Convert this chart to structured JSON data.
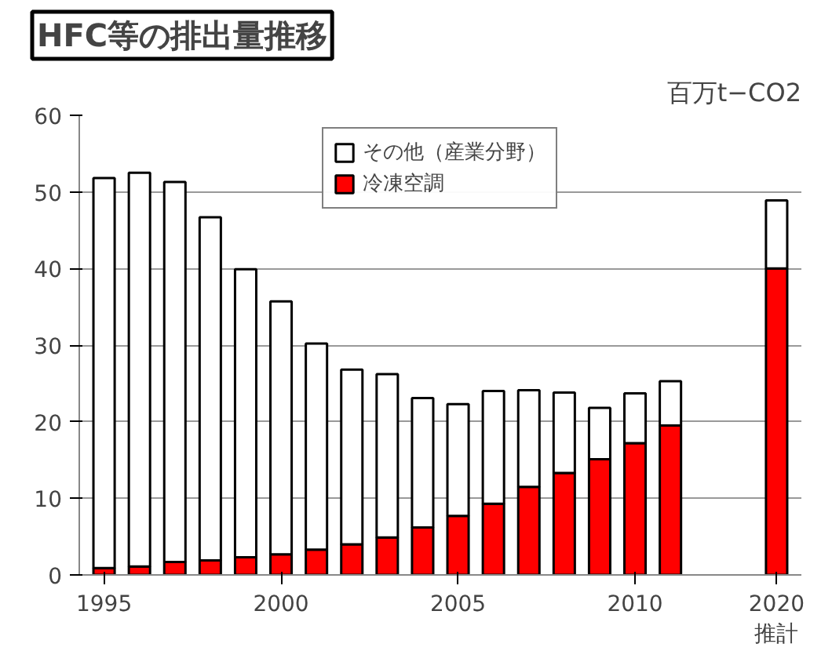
{
  "chart_data": {
    "type": "bar",
    "title": "HFC等の排出量推移",
    "ylabel": "百万t−CO2",
    "stacked": true,
    "categories": [
      "1995",
      null,
      null,
      null,
      null,
      "2000",
      null,
      null,
      null,
      null,
      "2005",
      null,
      null,
      null,
      null,
      "2010",
      null,
      null,
      null,
      "2020\n推計"
    ],
    "series": [
      {
        "name": "冷凍空調",
        "color": "#ff0000",
        "values": [
          0.9,
          1.1,
          1.7,
          1.9,
          2.3,
          2.7,
          3.3,
          4.0,
          4.9,
          6.2,
          7.7,
          9.3,
          11.5,
          13.3,
          15.1,
          17.2,
          19.5,
          null,
          null,
          40.0
        ]
      },
      {
        "name": "その他（産業分野）",
        "color": "#ffffff",
        "values": [
          50.9,
          51.4,
          49.6,
          44.8,
          37.6,
          33.0,
          26.9,
          22.8,
          21.3,
          16.9,
          14.6,
          14.7,
          12.6,
          10.5,
          6.7,
          6.5,
          5.8,
          null,
          null,
          8.9
        ]
      }
    ],
    "ylim": [
      0,
      60
    ],
    "yticks": [
      0,
      10,
      20,
      30,
      40,
      50,
      60
    ],
    "grid": "y",
    "legend": "top"
  }
}
